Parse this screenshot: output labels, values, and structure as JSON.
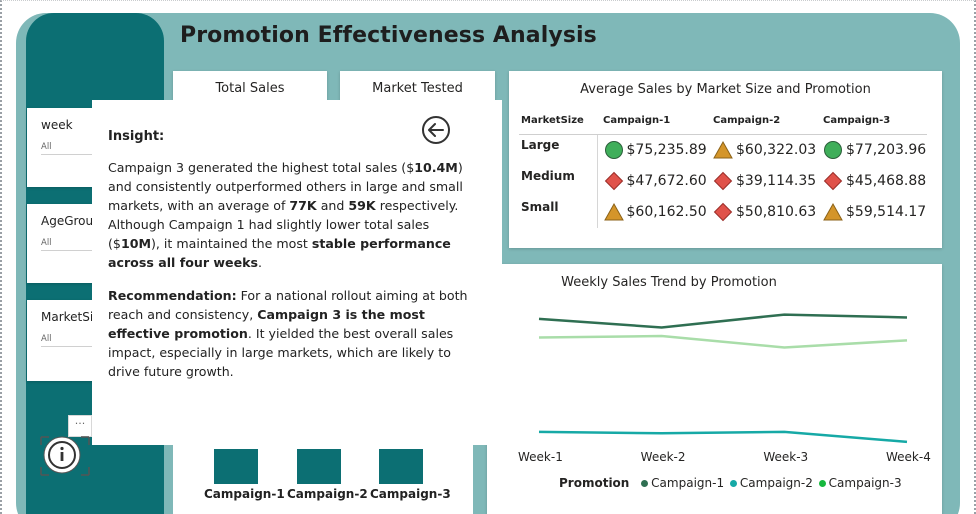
{
  "title": "Promotion Effectiveness Analysis",
  "slicers": [
    {
      "label": "week",
      "value": "All"
    },
    {
      "label": "AgeGroup",
      "value": "All"
    },
    {
      "label": "MarketSi",
      "value": "All"
    }
  ],
  "kpis": [
    {
      "label": "Total Sales"
    },
    {
      "label": "Market Tested"
    }
  ],
  "matrix": {
    "title": "Average Sales by Market Size and Promotion",
    "row_header": "MarketSize",
    "columns": [
      "Campaign-1",
      "Campaign-2",
      "Campaign-3"
    ],
    "rows": [
      {
        "label": "Large",
        "cells": [
          {
            "value": "$75,235.89",
            "icon": "green-circle-icon"
          },
          {
            "value": "$60,322.03",
            "icon": "yellow-triangle-icon"
          },
          {
            "value": "$77,203.96",
            "icon": "green-circle-icon"
          }
        ]
      },
      {
        "label": "Medium",
        "cells": [
          {
            "value": "$47,672.60",
            "icon": "red-diamond-icon"
          },
          {
            "value": "$39,114.35",
            "icon": "red-diamond-icon"
          },
          {
            "value": "$45,468.88",
            "icon": "red-diamond-icon"
          }
        ]
      },
      {
        "label": "Small",
        "cells": [
          {
            "value": "$60,162.50",
            "icon": "yellow-triangle-icon"
          },
          {
            "value": "$50,810.63",
            "icon": "red-diamond-icon"
          },
          {
            "value": "$59,514.17",
            "icon": "yellow-triangle-icon"
          }
        ]
      }
    ]
  },
  "insight": {
    "heading": "Insight:",
    "p1_a": "Campaign 3 generated the highest total sales ($",
    "p1_b": "10.4M",
    "p1_c": ") and consistently outperformed others in large and small markets, with an average of ",
    "p1_d": "77K",
    "p1_e": " and ",
    "p1_f": "59K",
    "p1_g": " respectively. Although Campaign 1 had slightly lower total sales ($",
    "p1_h": "10M",
    "p1_i": "), it maintained the most ",
    "p1_j": "stable performance across all four weeks",
    "p1_k": ".",
    "rec_label": "Recommendation:",
    "p2_a": " For a national rollout aiming at both reach and consistency, ",
    "p2_b": "Campaign 3 is the most effective promotion",
    "p2_c": ". It yielded the best overall sales impact, especially in large markets, which are likely to drive future growth."
  },
  "bar_chart": {
    "categories": [
      "Campaign-1",
      "Campaign-2",
      "Campaign-3"
    ]
  },
  "chart_data": {
    "type": "line",
    "title": "Weekly Sales Trend by Promotion",
    "categories": [
      "Week-1",
      "Week-2",
      "Week-3",
      "Week-4"
    ],
    "legend_title": "Promotion",
    "series": [
      {
        "name": "Campaign-1",
        "color": "#2f6f52",
        "values": [
          0.91,
          0.85,
          0.94,
          0.92
        ]
      },
      {
        "name": "Campaign-2",
        "color": "#16a9a6",
        "values": [
          0.12,
          0.11,
          0.12,
          0.05
        ]
      },
      {
        "name": "Campaign-3",
        "color": "#a9dda9",
        "values": [
          0.78,
          0.79,
          0.71,
          0.76
        ]
      }
    ],
    "legend_position": "bottom-left",
    "grid": false
  },
  "colors": {
    "accent": "#0c6f73",
    "background": "#7fb8b8",
    "status_good": "#3fae5a",
    "status_warn": "#d4952a",
    "status_bad": "#e0524a"
  }
}
